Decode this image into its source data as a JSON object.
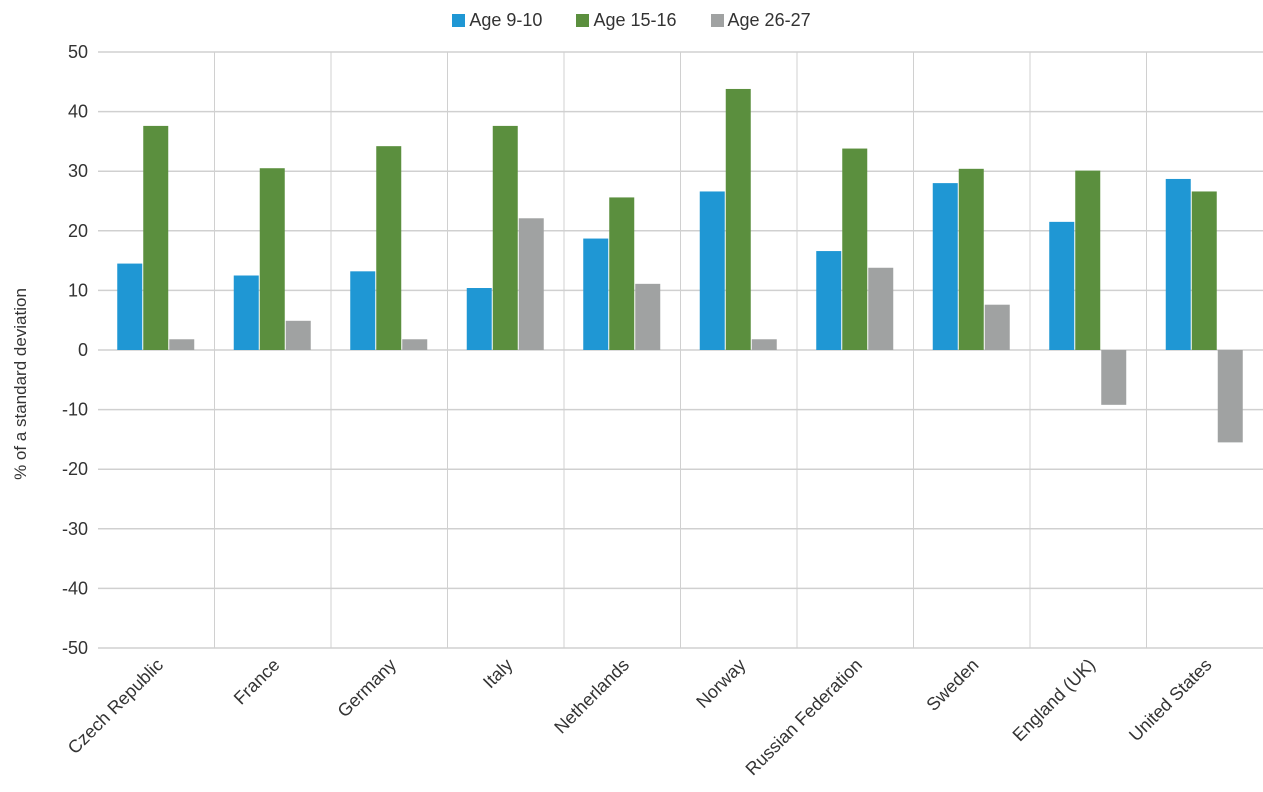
{
  "chart_data": {
    "type": "bar",
    "title": "",
    "xlabel": "",
    "ylabel": "% of a standard deviation",
    "ylim": [
      -50,
      50
    ],
    "yticks": [
      50,
      40,
      30,
      20,
      10,
      0,
      -10,
      -20,
      -30,
      -40,
      -50
    ],
    "grid": true,
    "legend_position": "top-center",
    "categories": [
      "Czech Republic",
      "France",
      "Germany",
      "Italy",
      "Netherlands",
      "Norway",
      "Russian Federation",
      "Sweden",
      "England (UK)",
      "United States"
    ],
    "series": [
      {
        "name": "Age 9-10",
        "color": "#1f97d4",
        "values": [
          14.5,
          12.5,
          13.2,
          10.4,
          18.7,
          26.6,
          16.6,
          28.0,
          21.5,
          28.7
        ]
      },
      {
        "name": "Age 15-16",
        "color": "#5b8f3e",
        "values": [
          37.6,
          30.5,
          34.2,
          37.6,
          25.6,
          43.8,
          33.8,
          30.4,
          30.1,
          26.6
        ]
      },
      {
        "name": "Age 26-27",
        "color": "#a0a2a2",
        "values": [
          1.8,
          4.9,
          1.8,
          22.1,
          11.1,
          1.8,
          13.8,
          7.6,
          -9.2,
          -15.5
        ]
      }
    ]
  }
}
